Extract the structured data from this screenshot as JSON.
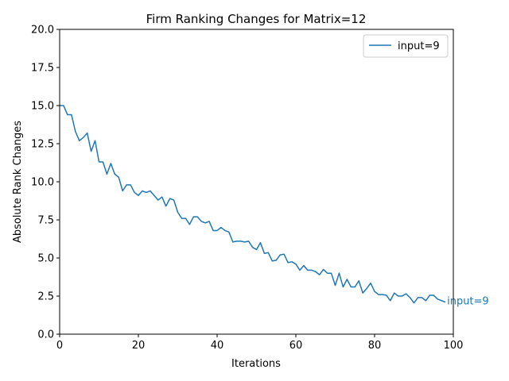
{
  "chart_data": {
    "type": "line",
    "title": "Firm Ranking Changes for Matrix=12",
    "xlabel": "Iterations",
    "ylabel": "Absolute Rank Changes",
    "xlim": [
      0,
      100
    ],
    "ylim": [
      0,
      20
    ],
    "xticks": [
      0,
      20,
      40,
      60,
      80,
      100
    ],
    "xtick_labels": [
      "0",
      "20",
      "40",
      "60",
      "80",
      "100"
    ],
    "yticks": [
      0,
      2.5,
      5,
      7.5,
      10,
      12.5,
      15,
      17.5,
      20
    ],
    "ytick_labels": [
      "0.0",
      "2.5",
      "5.0",
      "7.5",
      "10.0",
      "12.5",
      "15.0",
      "17.5",
      "20.0"
    ],
    "grid": false,
    "legend_position": "top-right",
    "series": [
      {
        "name": "input=9",
        "color": "#1f77b4",
        "end_label": "input=9",
        "x": [
          0,
          1,
          2,
          3,
          4,
          5,
          6,
          7,
          8,
          9,
          10,
          11,
          12,
          13,
          14,
          15,
          16,
          17,
          18,
          19,
          20,
          21,
          22,
          23,
          24,
          25,
          26,
          27,
          28,
          29,
          30,
          31,
          32,
          33,
          34,
          35,
          36,
          37,
          38,
          39,
          40,
          41,
          42,
          43,
          44,
          45,
          46,
          47,
          48,
          49,
          50,
          51,
          52,
          53,
          54,
          55,
          56,
          57,
          58,
          59,
          60,
          61,
          62,
          63,
          64,
          65,
          66,
          67,
          68,
          69,
          70,
          71,
          72,
          73,
          74,
          75,
          76,
          77,
          78,
          79,
          80,
          81,
          82,
          83,
          84,
          85,
          86,
          87,
          88,
          89,
          90,
          91,
          92,
          93,
          94,
          95,
          96,
          97,
          98
        ],
        "y": [
          15.0,
          15.0,
          14.4,
          14.4,
          13.3,
          12.7,
          12.9,
          13.2,
          12.0,
          12.7,
          11.3,
          11.3,
          10.5,
          11.2,
          10.5,
          10.3,
          9.4,
          9.8,
          9.8,
          9.3,
          9.1,
          9.4,
          9.3,
          9.4,
          9.1,
          8.8,
          9.0,
          8.4,
          8.9,
          8.8,
          8.0,
          7.6,
          7.6,
          7.2,
          7.7,
          7.7,
          7.4,
          7.3,
          7.4,
          6.8,
          6.8,
          7.0,
          6.8,
          6.7,
          6.05,
          6.1,
          6.1,
          6.05,
          6.1,
          5.7,
          5.55,
          6.0,
          5.3,
          5.35,
          4.8,
          4.85,
          5.2,
          5.25,
          4.7,
          4.75,
          4.6,
          4.2,
          4.5,
          4.2,
          4.2,
          4.1,
          3.9,
          4.25,
          4.0,
          4.0,
          3.2,
          4.0,
          3.1,
          3.6,
          3.1,
          3.1,
          3.5,
          2.7,
          3.0,
          3.35,
          2.8,
          2.6,
          2.6,
          2.55,
          2.2,
          2.7,
          2.5,
          2.5,
          2.65,
          2.4,
          2.05,
          2.4,
          2.4,
          2.2,
          2.55,
          2.55,
          2.3,
          2.2,
          2.1
        ]
      }
    ]
  }
}
